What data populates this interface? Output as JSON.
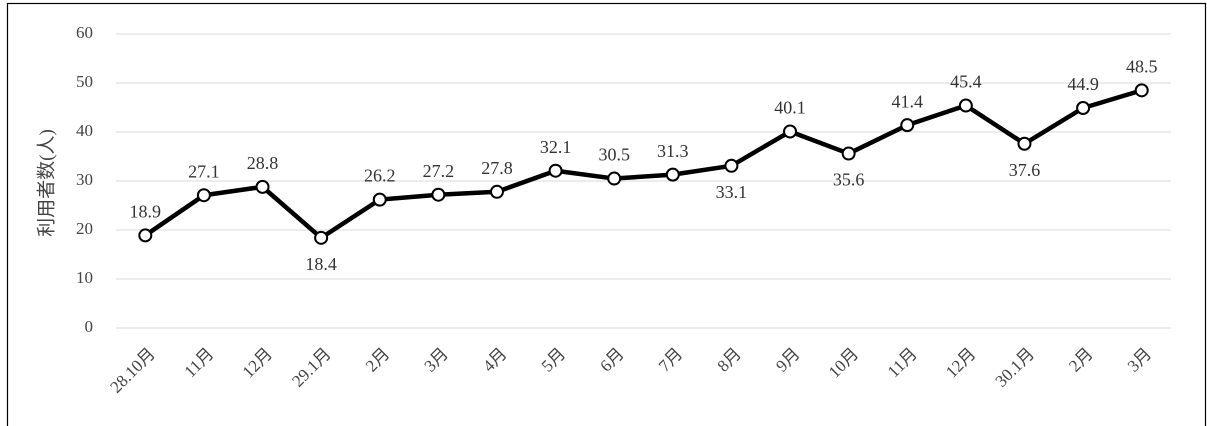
{
  "chart_data": {
    "type": "line",
    "y_label": "利用者数(人)",
    "categories": [
      "28.10月",
      "11月",
      "12月",
      "29.1月",
      "2月",
      "3月",
      "4月",
      "5月",
      "6月",
      "7月",
      "8月",
      "9月",
      "10月",
      "11月",
      "12月",
      "30.1月",
      "2月",
      "3月"
    ],
    "series": [
      {
        "name": "利用者数",
        "color": "#000000",
        "values": [
          18.9,
          27.1,
          28.8,
          18.4,
          26.2,
          27.2,
          27.8,
          32.1,
          30.5,
          31.3,
          33.1,
          40.1,
          35.6,
          41.4,
          45.4,
          37.6,
          44.9,
          48.5
        ]
      }
    ],
    "ylim": [
      0,
      60
    ],
    "yticks": [
      0,
      10,
      20,
      30,
      40,
      50,
      60
    ],
    "grid": true
  }
}
